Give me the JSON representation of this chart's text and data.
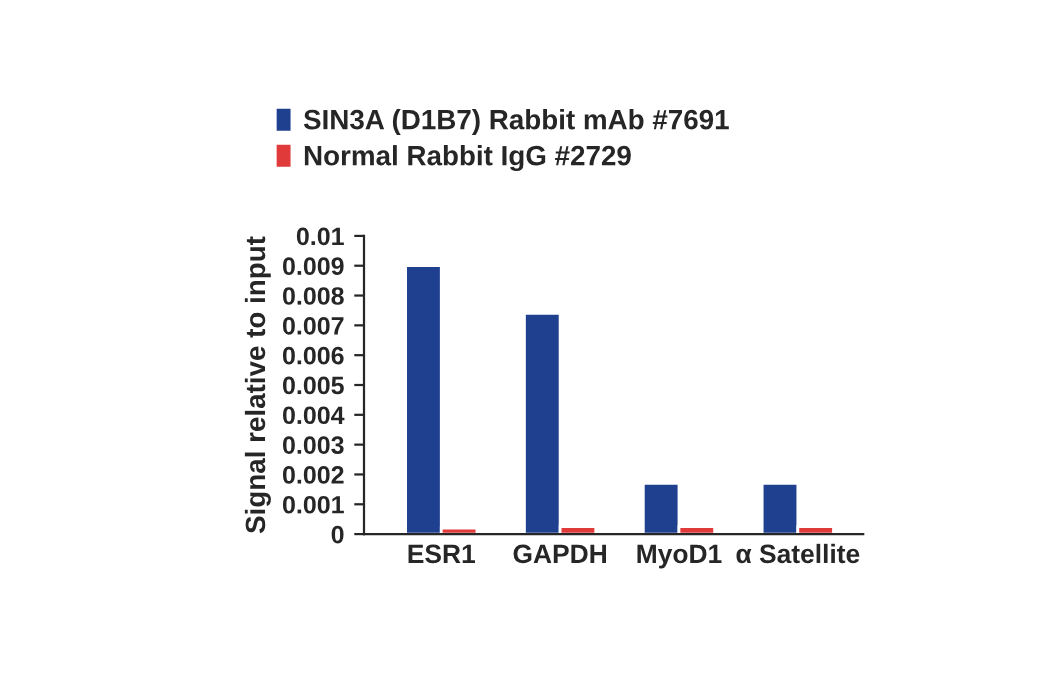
{
  "chart_data": {
    "type": "bar",
    "ylabel": "Signal relative to input",
    "categories": [
      "ESR1",
      "GAPDH",
      "MyoD1",
      "α Satellite"
    ],
    "series": [
      {
        "name": "SIN3A (D1B7) Rabbit mAb #7691",
        "color": "#1f3f8f",
        "values": [
          0.009,
          0.0074,
          0.0017,
          0.0017
        ]
      },
      {
        "name": "Normal Rabbit IgG #2729",
        "color": "#e03a3a",
        "values": [
          0.0002,
          0.00025,
          0.00025,
          0.00025
        ]
      }
    ],
    "ylim": [
      0,
      0.01
    ],
    "yticks": [
      0,
      0.001,
      0.002,
      0.003,
      0.004,
      0.005,
      0.006,
      0.007,
      0.008,
      0.009,
      0.01
    ],
    "grid": false,
    "legend": "top left"
  }
}
